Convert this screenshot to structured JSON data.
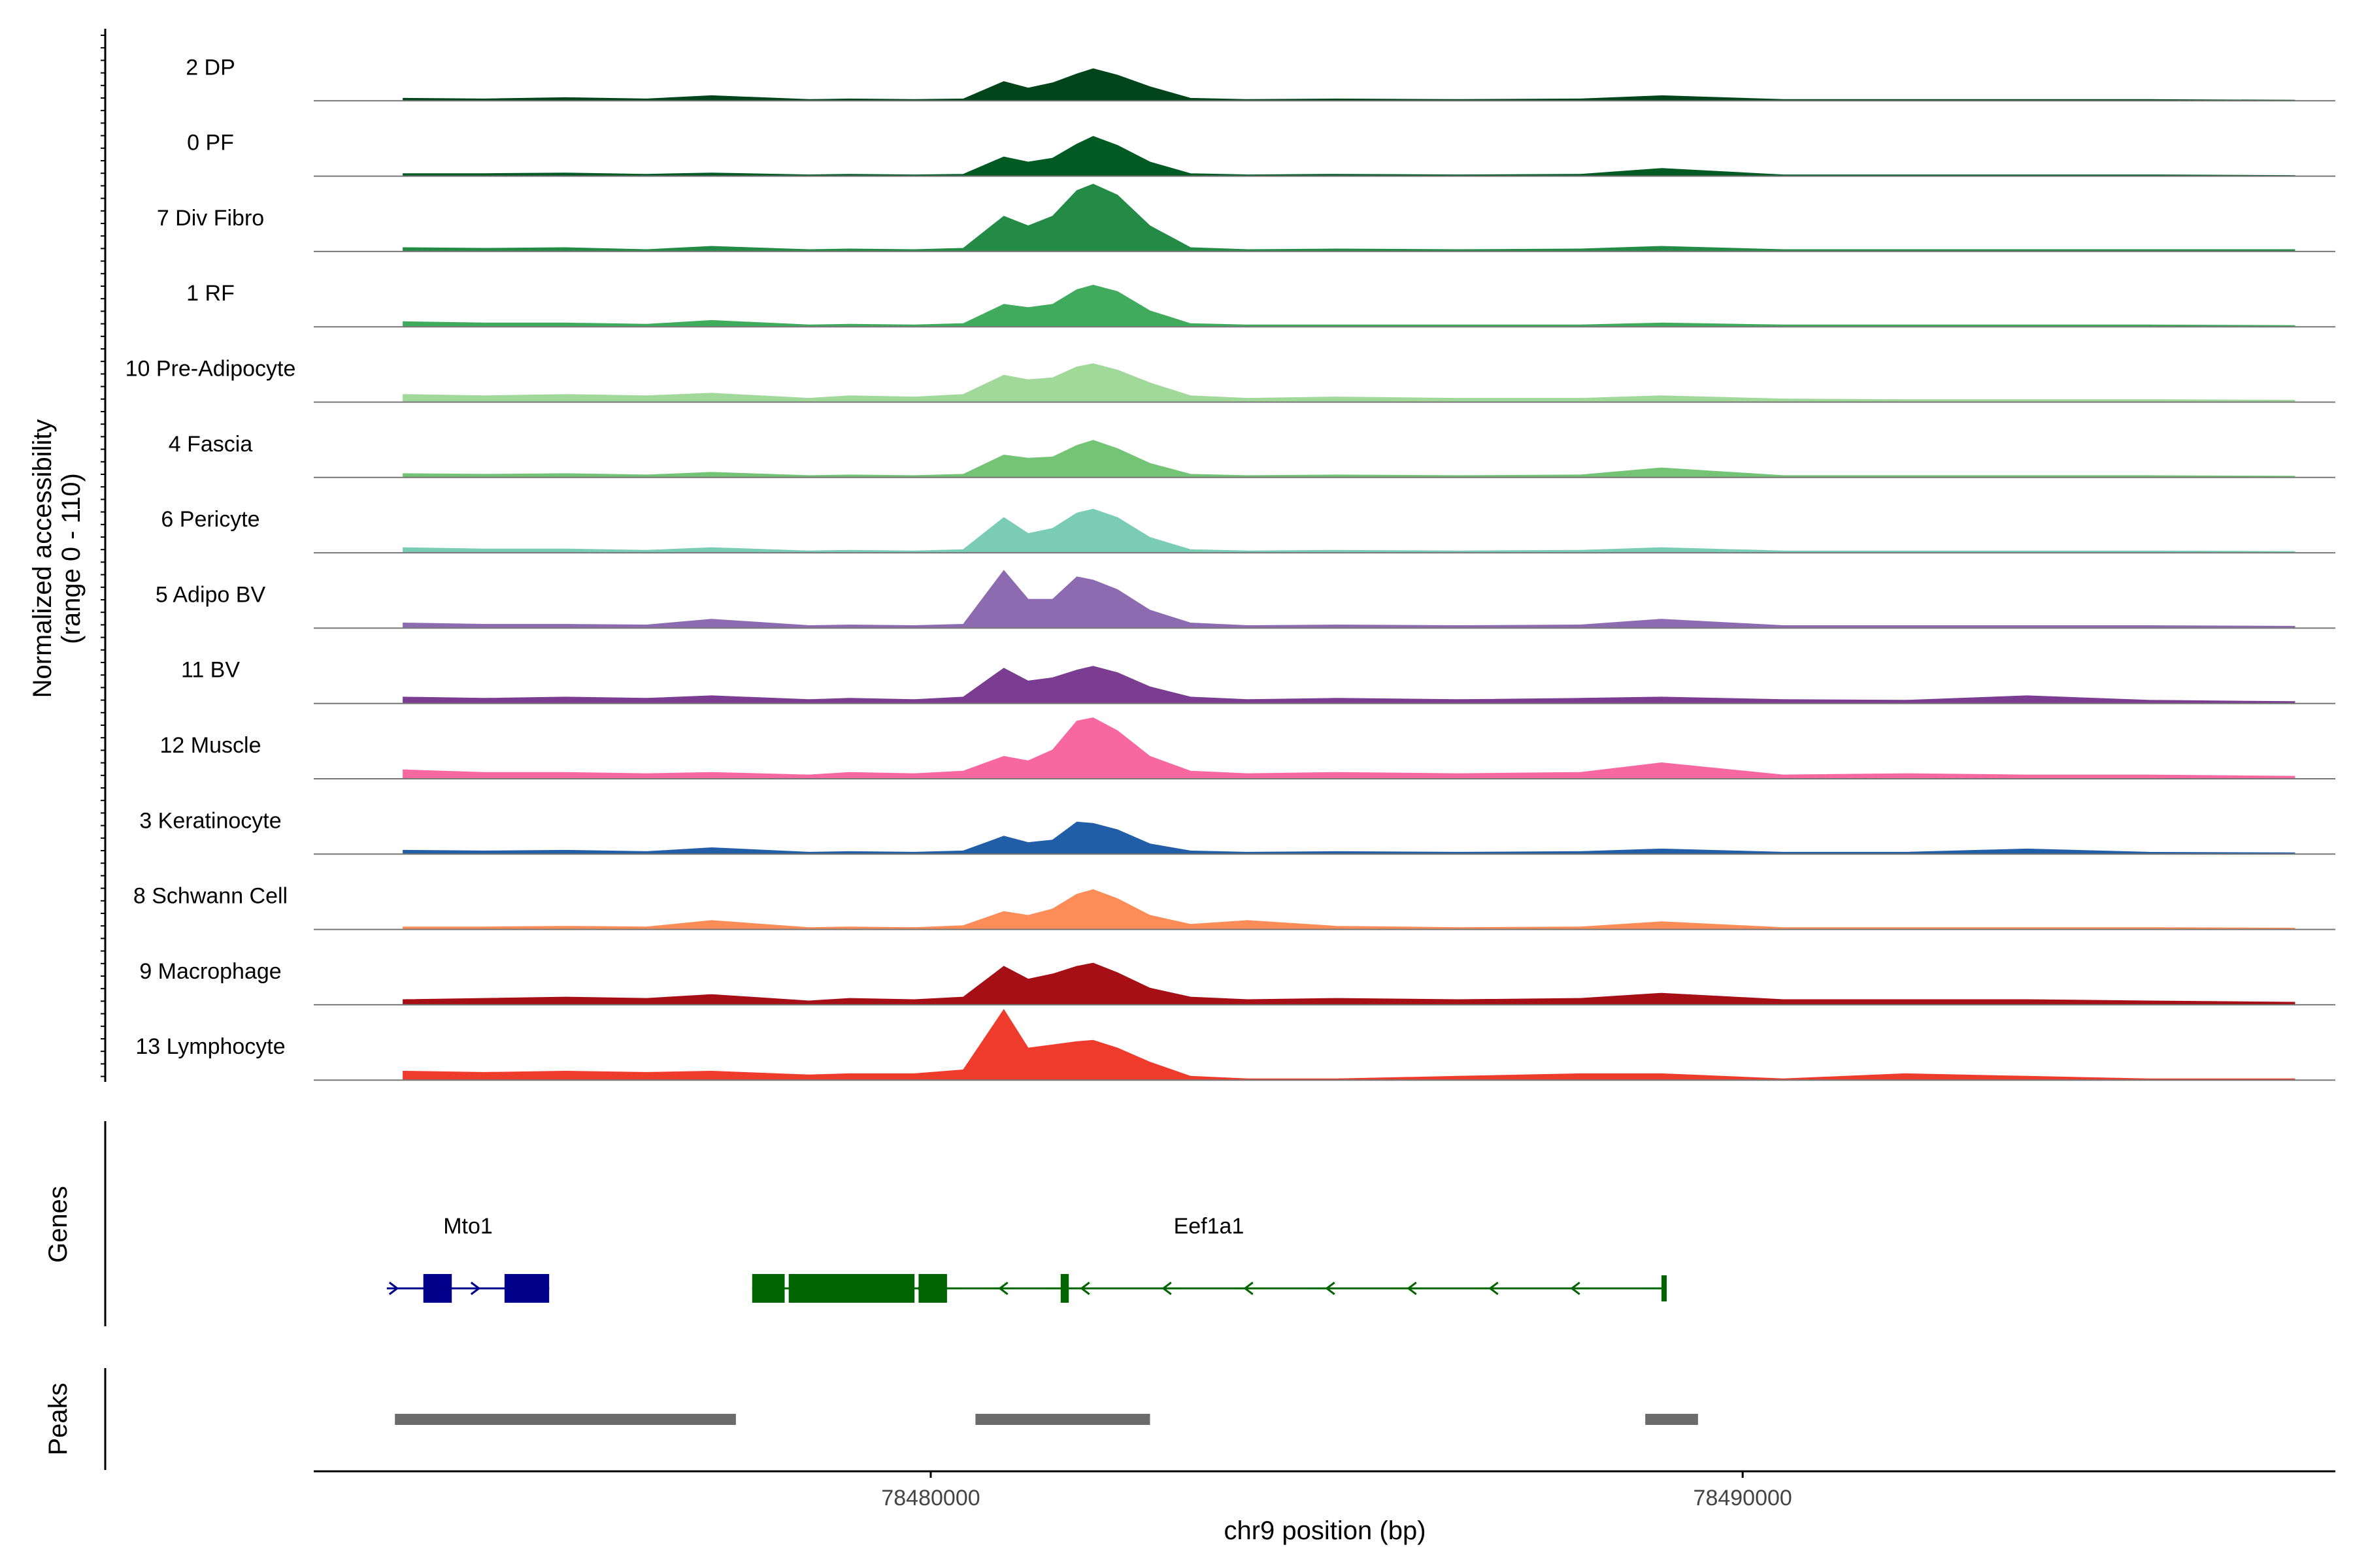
{
  "chart_data": {
    "type": "area",
    "title": "",
    "chromosome": "chr9",
    "xlabel": "chr9 position (bp)",
    "ylabel_line1": "Normalized accessibility",
    "ylabel_line2": "(range 0 - 110)",
    "yrange": [
      0,
      110
    ],
    "xlim": [
      78472400,
      78497300
    ],
    "x_ticks": [
      78480000,
      78490000
    ],
    "x_tick_labels": [
      "78480000",
      "78490000"
    ],
    "track_labels": {
      "genes": "Genes",
      "peaks": "Peaks"
    },
    "grid": false,
    "legend": "none",
    "peak_profile": {
      "description": "shared shape of each track, values 0-110 at positions (bp)",
      "positions": [
        78473500,
        78474500,
        78475500,
        78476500,
        78477300,
        78478500,
        78479000,
        78479800,
        78480400,
        78480900,
        78481200,
        78481500,
        78481800,
        78482000,
        78482300,
        78482700,
        78483200,
        78483900,
        78485000,
        78486500,
        78488000,
        78489000,
        78490500,
        78492000,
        78493500,
        78495000,
        78496800
      ]
    },
    "series": [
      {
        "name": "2 DP",
        "color": "#00441b",
        "values": [
          4,
          3,
          5,
          3,
          8,
          2,
          3,
          2,
          3,
          30,
          20,
          28,
          42,
          50,
          40,
          22,
          4,
          2,
          3,
          2,
          3,
          8,
          2,
          2,
          2,
          2,
          1
        ]
      },
      {
        "name": "0 PF",
        "color": "#005a24",
        "values": [
          4,
          4,
          5,
          3,
          5,
          2,
          3,
          2,
          3,
          30,
          22,
          28,
          50,
          62,
          48,
          22,
          4,
          2,
          3,
          2,
          3,
          12,
          2,
          2,
          2,
          2,
          1
        ]
      },
      {
        "name": "7 Div Fibro",
        "color": "#238b45",
        "values": [
          6,
          5,
          6,
          3,
          8,
          3,
          4,
          3,
          5,
          55,
          40,
          55,
          95,
          105,
          88,
          40,
          6,
          3,
          4,
          3,
          4,
          8,
          3,
          3,
          3,
          3,
          3
        ]
      },
      {
        "name": "1 RF",
        "color": "#41ab5d",
        "values": [
          8,
          6,
          6,
          4,
          10,
          3,
          4,
          3,
          5,
          35,
          30,
          35,
          58,
          65,
          55,
          25,
          5,
          3,
          3,
          3,
          3,
          6,
          3,
          3,
          3,
          3,
          2
        ]
      },
      {
        "name": "10 Pre-Adipocyte",
        "color": "#a1d99b",
        "values": [
          12,
          10,
          12,
          10,
          14,
          6,
          10,
          8,
          12,
          42,
          35,
          38,
          55,
          60,
          50,
          30,
          10,
          6,
          8,
          6,
          6,
          10,
          5,
          4,
          4,
          4,
          3
        ]
      },
      {
        "name": "4 Fascia",
        "color": "#74c476",
        "values": [
          6,
          5,
          6,
          4,
          8,
          3,
          4,
          3,
          5,
          35,
          30,
          32,
          50,
          58,
          45,
          22,
          5,
          3,
          4,
          3,
          4,
          15,
          3,
          3,
          3,
          3,
          2
        ]
      },
      {
        "name": "6 Pericyte",
        "color": "#7bccb4",
        "values": [
          8,
          6,
          6,
          4,
          8,
          3,
          4,
          3,
          5,
          55,
          30,
          38,
          62,
          68,
          55,
          24,
          5,
          3,
          4,
          3,
          4,
          8,
          3,
          3,
          3,
          3,
          2
        ]
      },
      {
        "name": "5 Adipo BV",
        "color": "#8c6bb1",
        "values": [
          8,
          6,
          6,
          5,
          14,
          4,
          5,
          4,
          6,
          90,
          45,
          45,
          80,
          75,
          60,
          28,
          8,
          4,
          5,
          4,
          5,
          14,
          4,
          4,
          4,
          4,
          3
        ]
      },
      {
        "name": "11 BV",
        "color": "#7a3d91",
        "values": [
          10,
          8,
          10,
          8,
          12,
          6,
          8,
          6,
          10,
          55,
          35,
          40,
          52,
          58,
          48,
          26,
          10,
          6,
          8,
          6,
          8,
          10,
          6,
          5,
          12,
          5,
          3
        ]
      },
      {
        "name": "12 Muscle",
        "color": "#f768a1",
        "values": [
          14,
          10,
          10,
          8,
          10,
          6,
          10,
          8,
          12,
          35,
          28,
          45,
          90,
          95,
          75,
          35,
          12,
          8,
          10,
          8,
          10,
          25,
          6,
          8,
          6,
          6,
          4
        ]
      },
      {
        "name": "3 Keratinocyte",
        "color": "#225ea8",
        "values": [
          6,
          5,
          6,
          4,
          10,
          3,
          4,
          3,
          5,
          28,
          18,
          22,
          50,
          48,
          38,
          16,
          5,
          3,
          4,
          3,
          4,
          8,
          3,
          3,
          8,
          3,
          2
        ]
      },
      {
        "name": "8 Schwann Cell",
        "color": "#fc8d59",
        "values": [
          4,
          4,
          5,
          4,
          14,
          3,
          4,
          3,
          6,
          28,
          22,
          32,
          55,
          62,
          48,
          22,
          8,
          14,
          5,
          3,
          4,
          12,
          3,
          3,
          3,
          3,
          2
        ]
      },
      {
        "name": "9 Macrophage",
        "color": "#a50f15",
        "values": [
          8,
          10,
          12,
          10,
          16,
          6,
          10,
          8,
          12,
          60,
          40,
          48,
          60,
          65,
          50,
          26,
          12,
          8,
          10,
          8,
          10,
          18,
          8,
          8,
          8,
          6,
          4
        ]
      },
      {
        "name": "13 Lymphocyte",
        "color": "#ef3b2c",
        "values": [
          14,
          12,
          14,
          12,
          14,
          8,
          10,
          10,
          16,
          110,
          50,
          55,
          60,
          62,
          50,
          28,
          6,
          2,
          2,
          6,
          10,
          10,
          2,
          10,
          6,
          2,
          2
        ]
      }
    ],
    "genes": [
      {
        "name": "Mto1",
        "strand": "+",
        "color": "#00008b",
        "start": 78473300,
        "end": 78475300,
        "exons": [
          [
            78473750,
            78474100
          ],
          [
            78474750,
            78475300
          ]
        ]
      },
      {
        "name": "Eef1a1",
        "strand": "-",
        "color": "#006400",
        "start": 78477800,
        "end": 78489050,
        "exons": [
          [
            78477800,
            78478200
          ],
          [
            78478250,
            78479800
          ],
          [
            78479850,
            78480200
          ],
          [
            78481600,
            78481700
          ],
          [
            78489000,
            78489050
          ]
        ]
      }
    ],
    "peaks": [
      {
        "start": 78473400,
        "end": 78477600
      },
      {
        "start": 78480550,
        "end": 78482700
      },
      {
        "start": 78488800,
        "end": 78489450
      }
    ]
  }
}
